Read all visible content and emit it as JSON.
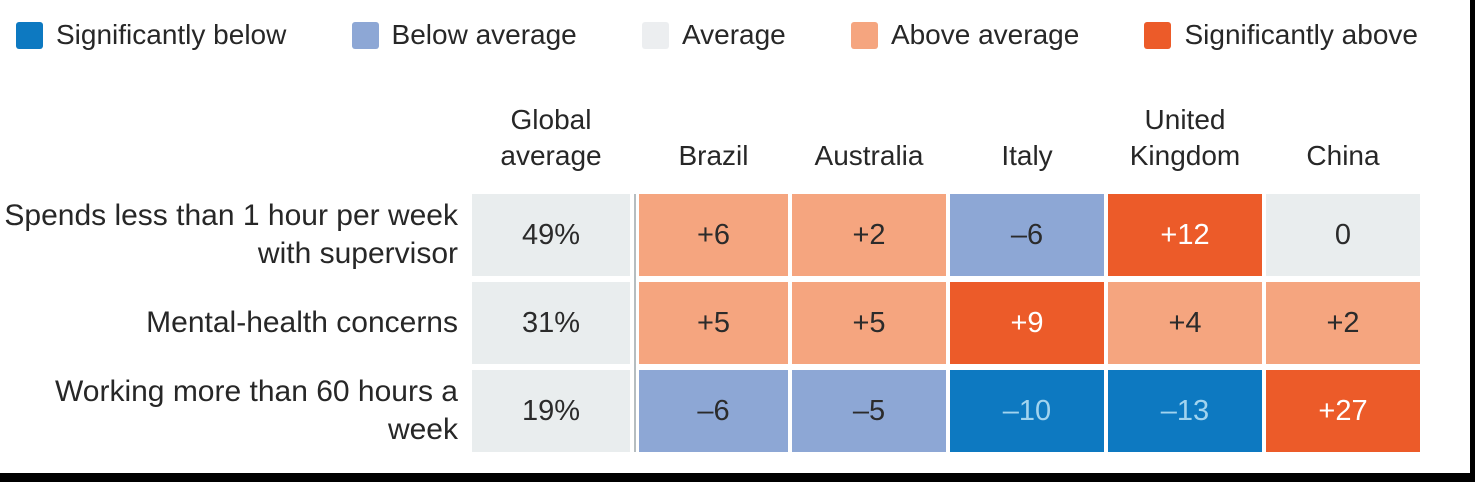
{
  "colors": {
    "significantly_below": "#0d79c1",
    "below_average": "#8da7d5",
    "average": "#e9edee",
    "above_average": "#f5a57f",
    "significantly_above": "#ec5b29",
    "text_dark": "#2b2b2b",
    "text_on_dark_blue": "#a2d4ef",
    "text_on_dark_orange": "#ffffff"
  },
  "legend": {
    "items": [
      {
        "label": "Significantly below",
        "level": "sig-below",
        "color": "#0d79c1"
      },
      {
        "label": "Below average",
        "level": "below",
        "color": "#8da7d5"
      },
      {
        "label": "Average",
        "level": "average",
        "color": "#eceef0"
      },
      {
        "label": "Above average",
        "level": "above",
        "color": "#f5a57f"
      },
      {
        "label": "Significantly above",
        "level": "sig-above",
        "color": "#ec5b29"
      }
    ]
  },
  "table": {
    "columns": [
      "Global average",
      "Brazil",
      "Australia",
      "Italy",
      "United Kingdom",
      "China"
    ],
    "rows": [
      {
        "label": "Spends less than 1 hour per week with supervisor",
        "cells": [
          {
            "value": "49%",
            "level": "average"
          },
          {
            "value": "+6",
            "level": "above"
          },
          {
            "value": "+2",
            "level": "above"
          },
          {
            "value": "–6",
            "level": "below"
          },
          {
            "value": "+12",
            "level": "sig-above"
          },
          {
            "value": "0",
            "level": "average"
          }
        ]
      },
      {
        "label": "Mental-health concerns",
        "cells": [
          {
            "value": "31%",
            "level": "average"
          },
          {
            "value": "+5",
            "level": "above"
          },
          {
            "value": "+5",
            "level": "above"
          },
          {
            "value": "+9",
            "level": "sig-above"
          },
          {
            "value": "+4",
            "level": "above"
          },
          {
            "value": "+2",
            "level": "above"
          }
        ]
      },
      {
        "label": "Working more than 60 hours a week",
        "cells": [
          {
            "value": "19%",
            "level": "average"
          },
          {
            "value": "–6",
            "level": "below"
          },
          {
            "value": "–5",
            "level": "below"
          },
          {
            "value": "–10",
            "level": "sig-below"
          },
          {
            "value": "–13",
            "level": "sig-below"
          },
          {
            "value": "+27",
            "level": "sig-above"
          }
        ]
      }
    ]
  },
  "chart_data": {
    "type": "heatmap",
    "title": "",
    "columns": [
      "Global average",
      "Brazil",
      "Australia",
      "Italy",
      "United Kingdom",
      "China"
    ],
    "rows": [
      "Spends less than 1 hour per week with supervisor",
      "Mental-health concerns",
      "Working more than 60 hours a week"
    ],
    "global_average_percent": [
      49,
      31,
      19
    ],
    "country_deviation_points": [
      [
        6,
        2,
        -6,
        12,
        0
      ],
      [
        5,
        5,
        9,
        4,
        2
      ],
      [
        -6,
        -5,
        -10,
        -13,
        27
      ]
    ],
    "legend_categories": [
      "Significantly below",
      "Below average",
      "Average",
      "Above average",
      "Significantly above"
    ],
    "legend_position": "top"
  }
}
